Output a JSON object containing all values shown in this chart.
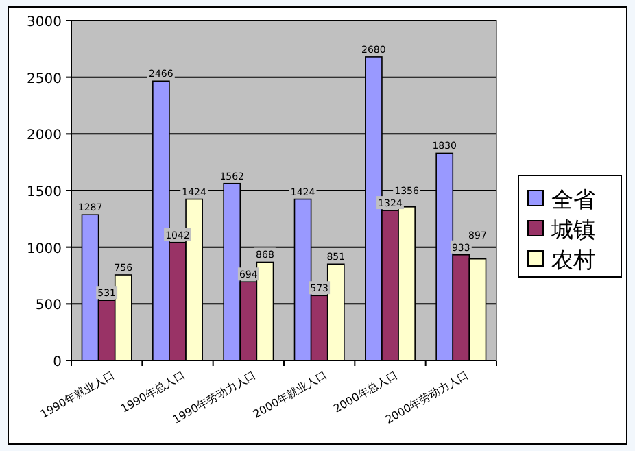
{
  "chart_data": {
    "type": "bar",
    "categories": [
      "1990年就业人口",
      "1990年总人口",
      "1990年劳动力人口",
      "2000年就业人口",
      "2000年总人口",
      "2000年劳动力人口"
    ],
    "series": [
      {
        "name": "全省",
        "color": "#9999ff",
        "values": [
          1287,
          2466,
          1562,
          1424,
          2680,
          1830
        ]
      },
      {
        "name": "城镇",
        "color": "#993366",
        "values": [
          531,
          1042,
          694,
          573,
          1324,
          933
        ]
      },
      {
        "name": "农村",
        "color": "#ffffcc",
        "values": [
          756,
          1424,
          868,
          851,
          1356,
          897
        ]
      }
    ],
    "ylim": [
      0,
      3000
    ],
    "yticks": [
      0,
      500,
      1000,
      1500,
      2000,
      2500,
      3000
    ],
    "grid": "y",
    "legend": "right",
    "data_labels": true
  }
}
